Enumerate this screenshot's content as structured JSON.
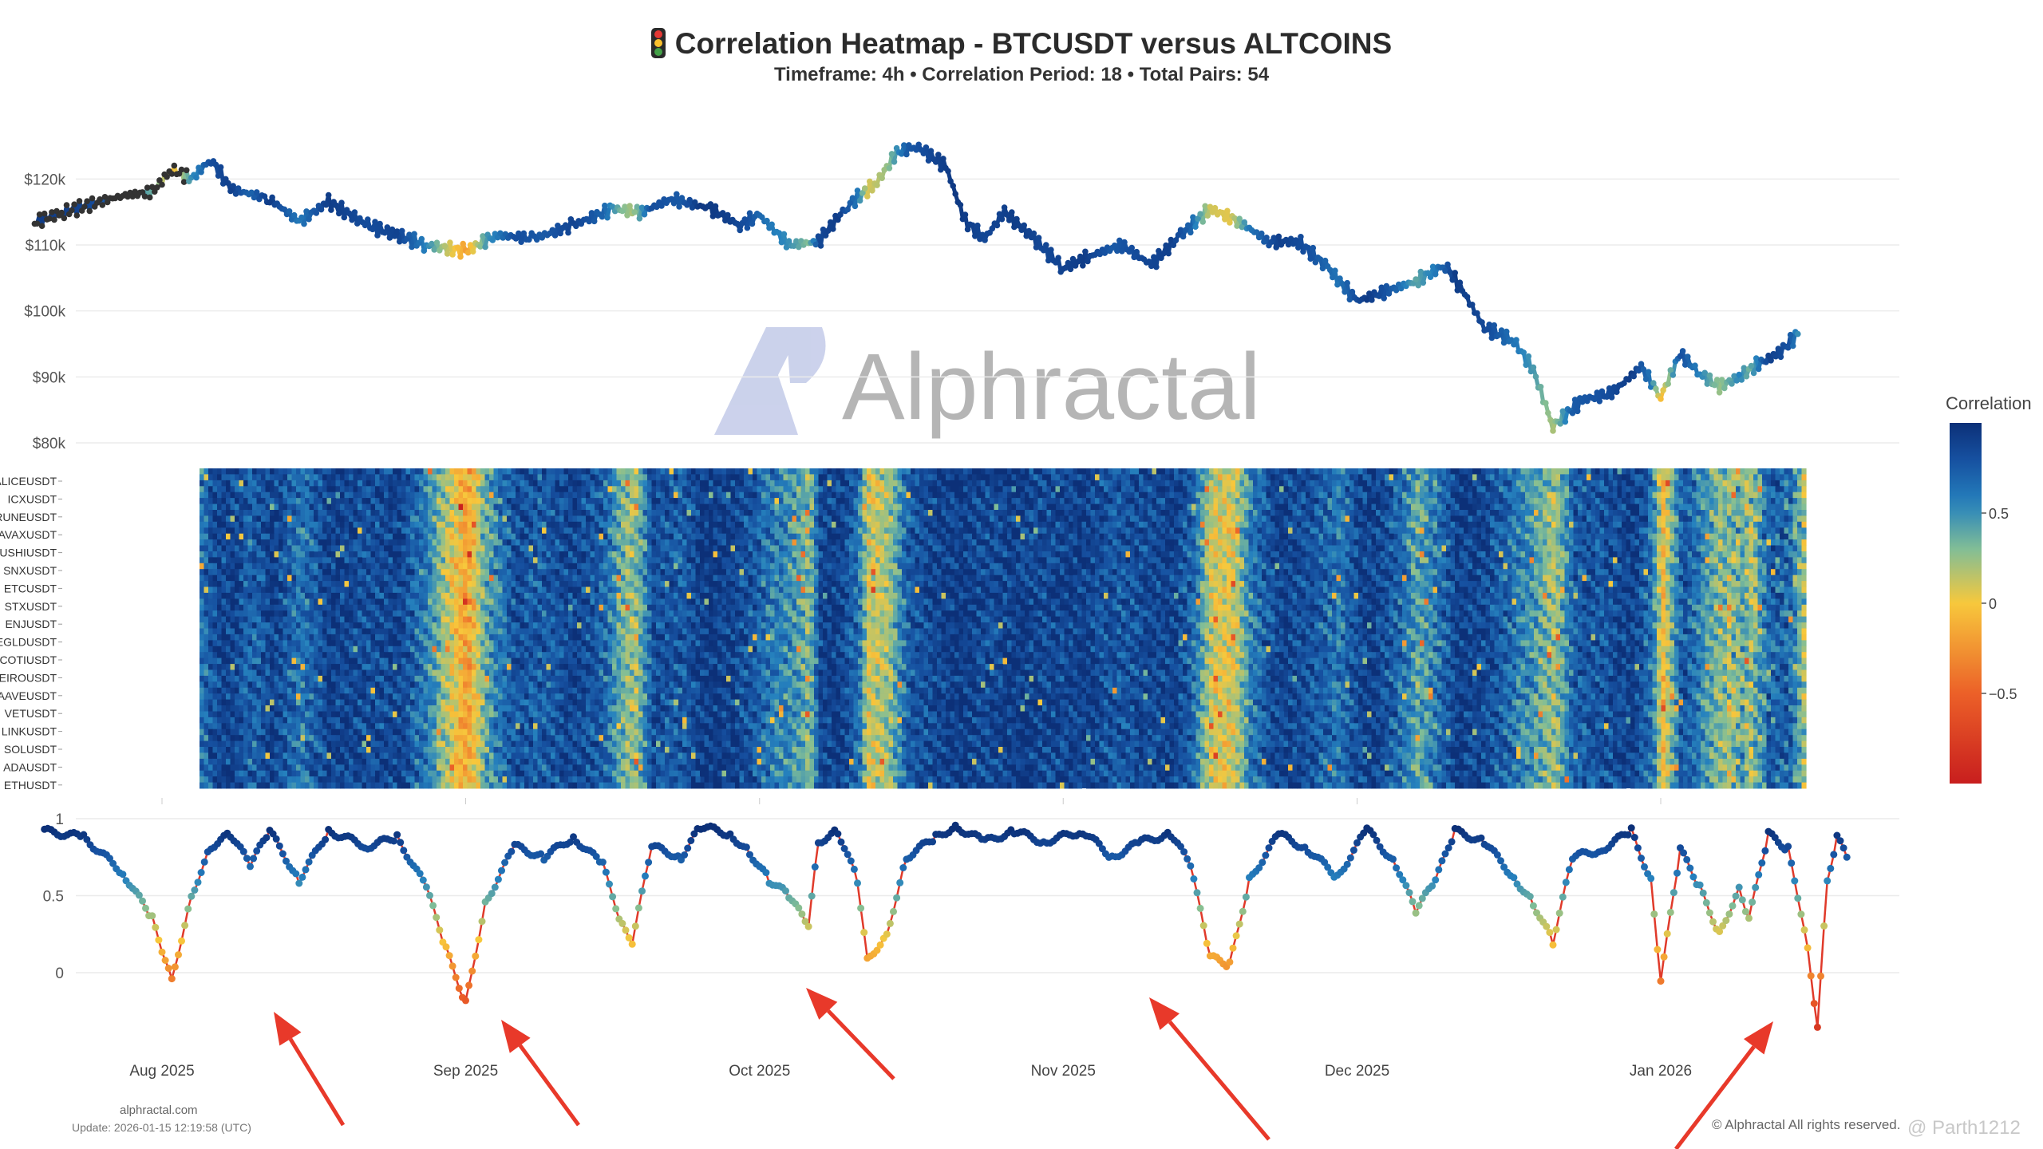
{
  "header": {
    "title": "Correlation Heatmap - BTCUSDT versus ALTCOINS",
    "subtitle": "Timeframe: 4h • Correlation Period: 18  • Total Pairs: 54"
  },
  "watermark": "Alphractal",
  "footer": {
    "site": "alphractal.com",
    "update": "Update: 2026-01-15 12:19:58 (UTC)",
    "rights": "© Alphractal All rights reserved.",
    "user": "@ Parth1212"
  },
  "colors": {
    "very_high_corr": "#0c3d8a",
    "high_corr": "#1f78b8",
    "mid_corr": "#6fb9a8",
    "zero_corr": "#f5c43a",
    "low_corr": "#f08a2e",
    "negative_corr": "#d7301f",
    "line": "#e03a2a",
    "arrow": "#e8392a"
  },
  "chart_data": [
    {
      "type": "line",
      "name": "price",
      "x_range": [
        "2025-07-19",
        "2026-01-15"
      ],
      "ylim": [
        80000,
        125000
      ],
      "yticks": [
        "$80k",
        "$90k",
        "$100k",
        "$110k",
        "$120k"
      ],
      "points": [
        [
          "2025-07-19",
          113500
        ],
        [
          "2025-07-22",
          115000
        ],
        [
          "2025-07-28",
          117500
        ],
        [
          "2025-07-31",
          118000
        ],
        [
          "2025-08-02",
          121500
        ],
        [
          "2025-08-04",
          120000
        ],
        [
          "2025-08-06",
          123000
        ],
        [
          "2025-08-08",
          118500
        ],
        [
          "2025-08-12",
          117000
        ],
        [
          "2025-08-15",
          113500
        ],
        [
          "2025-08-18",
          116500
        ],
        [
          "2025-08-22",
          113000
        ],
        [
          "2025-08-25",
          111500
        ],
        [
          "2025-08-28",
          110000
        ],
        [
          "2025-09-01",
          109000
        ],
        [
          "2025-09-04",
          111500
        ],
        [
          "2025-09-08",
          111000
        ],
        [
          "2025-09-12",
          113000
        ],
        [
          "2025-09-16",
          115500
        ],
        [
          "2025-09-19",
          115000
        ],
        [
          "2025-09-22",
          117000
        ],
        [
          "2025-09-26",
          115500
        ],
        [
          "2025-09-29",
          113000
        ],
        [
          "2025-10-01",
          114500
        ],
        [
          "2025-10-04",
          110000
        ],
        [
          "2025-10-07",
          110500
        ],
        [
          "2025-10-10",
          116000
        ],
        [
          "2025-10-13",
          119500
        ],
        [
          "2025-10-15",
          124000
        ],
        [
          "2025-10-17",
          125000
        ],
        [
          "2025-10-20",
          122000
        ],
        [
          "2025-10-22",
          113500
        ],
        [
          "2025-10-24",
          111000
        ],
        [
          "2025-10-26",
          115000
        ],
        [
          "2025-10-29",
          111000
        ],
        [
          "2025-11-01",
          106500
        ],
        [
          "2025-11-04",
          108500
        ],
        [
          "2025-11-07",
          110000
        ],
        [
          "2025-11-10",
          107000
        ],
        [
          "2025-11-13",
          111500
        ],
        [
          "2025-11-16",
          115500
        ],
        [
          "2025-11-19",
          113500
        ],
        [
          "2025-11-22",
          110500
        ],
        [
          "2025-11-25",
          110500
        ],
        [
          "2025-11-28",
          106500
        ],
        [
          "2025-12-01",
          101500
        ],
        [
          "2025-12-04",
          103000
        ],
        [
          "2025-12-07",
          104500
        ],
        [
          "2025-12-10",
          107000
        ],
        [
          "2025-12-12",
          102500
        ],
        [
          "2025-12-14",
          97500
        ],
        [
          "2025-12-17",
          95500
        ],
        [
          "2025-12-19",
          91000
        ],
        [
          "2025-12-21",
          82500
        ],
        [
          "2025-12-24",
          86500
        ],
        [
          "2025-12-27",
          87500
        ],
        [
          "2025-12-30",
          91500
        ],
        [
          "2026-01-01",
          87000
        ],
        [
          "2026-01-03",
          93500
        ],
        [
          "2026-01-05",
          90500
        ],
        [
          "2026-01-07",
          88500
        ],
        [
          "2026-01-09",
          90000
        ],
        [
          "2026-01-11",
          92000
        ],
        [
          "2026-01-13",
          93500
        ],
        [
          "2026-01-15",
          96500
        ]
      ]
    },
    {
      "type": "heatmap",
      "name": "correlation",
      "x_range": [
        "2025-07-20",
        "2026-01-15"
      ],
      "rows": [
        "ALICEUSDT",
        "ICXUSDT",
        "RUNEUSDT",
        "AVAXUSDT",
        "SUSHIUSDT",
        "SNXUSDT",
        "ETCUSDT",
        "STXUSDT",
        "ENJUSDT",
        "EGLDUSDT",
        "COTIUSDT",
        "NEIROUSDT",
        "AAVEUSDT",
        "VETUSDT",
        "LINKUSDT",
        "SOLUSDT",
        "ADAUSDT",
        "ETHUSDT"
      ],
      "colorbar": {
        "title": "Correlation",
        "ticks": [
          "0.5",
          "0",
          "−0.5"
        ],
        "range": [
          -1,
          1
        ]
      }
    },
    {
      "type": "line",
      "name": "average correlation",
      "x_range": [
        "2025-07-20",
        "2026-01-15"
      ],
      "ylim": [
        -0.4,
        1
      ],
      "yticks": [
        "0",
        "0.5",
        "1"
      ],
      "points": [
        [
          "2025-07-20",
          0.92
        ],
        [
          "2025-07-24",
          0.88
        ],
        [
          "2025-07-28",
          0.65
        ],
        [
          "2025-07-31",
          0.35
        ],
        [
          "2025-08-01",
          0.15
        ],
        [
          "2025-08-02",
          -0.05
        ],
        [
          "2025-08-04",
          0.5
        ],
        [
          "2025-08-06",
          0.82
        ],
        [
          "2025-08-08",
          0.9
        ],
        [
          "2025-08-10",
          0.7
        ],
        [
          "2025-08-12",
          0.92
        ],
        [
          "2025-08-15",
          0.6
        ],
        [
          "2025-08-18",
          0.92
        ],
        [
          "2025-08-22",
          0.82
        ],
        [
          "2025-08-25",
          0.88
        ],
        [
          "2025-08-28",
          0.55
        ],
        [
          "2025-08-30",
          0.15
        ],
        [
          "2025-09-01",
          -0.2
        ],
        [
          "2025-09-03",
          0.45
        ],
        [
          "2025-09-06",
          0.82
        ],
        [
          "2025-09-09",
          0.75
        ],
        [
          "2025-09-12",
          0.88
        ],
        [
          "2025-09-15",
          0.7
        ],
        [
          "2025-09-17",
          0.3
        ],
        [
          "2025-09-18",
          0.2
        ],
        [
          "2025-09-20",
          0.82
        ],
        [
          "2025-09-23",
          0.75
        ],
        [
          "2025-09-25",
          0.95
        ],
        [
          "2025-09-28",
          0.9
        ],
        [
          "2025-09-30",
          0.78
        ],
        [
          "2025-10-02",
          0.6
        ],
        [
          "2025-10-04",
          0.5
        ],
        [
          "2025-10-06",
          0.3
        ],
        [
          "2025-10-07",
          0.85
        ],
        [
          "2025-10-09",
          0.92
        ],
        [
          "2025-10-11",
          0.6
        ],
        [
          "2025-10-12",
          0.08
        ],
        [
          "2025-10-14",
          0.25
        ],
        [
          "2025-10-16",
          0.75
        ],
        [
          "2025-10-19",
          0.88
        ],
        [
          "2025-10-21",
          0.95
        ],
        [
          "2025-10-24",
          0.85
        ],
        [
          "2025-10-27",
          0.92
        ],
        [
          "2025-10-30",
          0.85
        ],
        [
          "2025-11-03",
          0.92
        ],
        [
          "2025-11-06",
          0.75
        ],
        [
          "2025-11-09",
          0.85
        ],
        [
          "2025-11-12",
          0.9
        ],
        [
          "2025-11-14",
          0.7
        ],
        [
          "2025-11-16",
          0.1
        ],
        [
          "2025-11-18",
          0.05
        ],
        [
          "2025-11-20",
          0.6
        ],
        [
          "2025-11-23",
          0.9
        ],
        [
          "2025-11-26",
          0.8
        ],
        [
          "2025-11-29",
          0.62
        ],
        [
          "2025-12-02",
          0.93
        ],
        [
          "2025-12-05",
          0.7
        ],
        [
          "2025-12-07",
          0.4
        ],
        [
          "2025-12-09",
          0.6
        ],
        [
          "2025-12-11",
          0.92
        ],
        [
          "2025-12-14",
          0.85
        ],
        [
          "2025-12-17",
          0.62
        ],
        [
          "2025-12-19",
          0.45
        ],
        [
          "2025-12-21",
          0.2
        ],
        [
          "2025-12-23",
          0.75
        ],
        [
          "2025-12-26",
          0.8
        ],
        [
          "2025-12-29",
          0.92
        ],
        [
          "2025-12-31",
          0.6
        ],
        [
          "2026-01-01",
          -0.05
        ],
        [
          "2026-01-03",
          0.8
        ],
        [
          "2026-01-05",
          0.55
        ],
        [
          "2026-01-07",
          0.25
        ],
        [
          "2026-01-09",
          0.55
        ],
        [
          "2026-01-10",
          0.35
        ],
        [
          "2026-01-12",
          0.9
        ],
        [
          "2026-01-14",
          0.8
        ],
        [
          "2026-01-15",
          0.5
        ],
        [
          "2026-01-16",
          0.15
        ],
        [
          "2026-01-17",
          -0.35
        ],
        [
          "2026-01-18",
          0.6
        ],
        [
          "2026-01-19",
          0.88
        ],
        [
          "2026-01-20",
          0.75
        ]
      ],
      "highlighted_dips": [
        "2025-08-02",
        "2025-09-01",
        "2025-10-12",
        "2025-11-18",
        "2026-01-01",
        "2026-01-17"
      ]
    }
  ],
  "x_axis": {
    "ticks": [
      "Aug 2025",
      "Sep 2025",
      "Oct 2025",
      "Nov 2025",
      "Dec 2025",
      "Jan 2026"
    ]
  }
}
